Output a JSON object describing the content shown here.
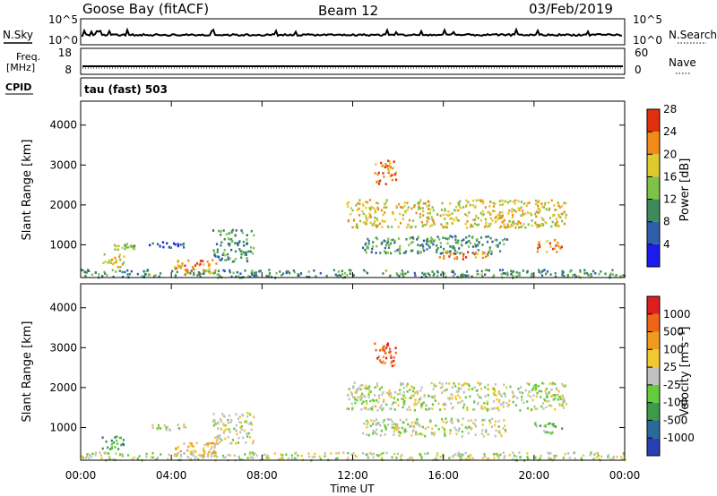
{
  "header": {
    "station": "Goose Bay (fitACF)",
    "beam": "Beam 12",
    "date": "03/Feb/2019"
  },
  "top_panels": {
    "nsky_label": "N.Sky",
    "nsky_ticks": [
      "10^5",
      "10^0"
    ],
    "nsearch_label": "N.Search",
    "nsearch_ticks": [
      "10^5",
      "10^0"
    ],
    "freq_label_1": "Freq.",
    "freq_label_2": "[MHz]",
    "freq_ticks": [
      "18",
      "8"
    ],
    "nave_label": "Nave",
    "nave_ticks": [
      "60",
      "0"
    ],
    "cpid_label": "CPID",
    "cpid_value": "tau (fast) 503"
  },
  "chart_data": [
    {
      "type": "heatmap",
      "ylabel": "Slant Range [km]",
      "xlabel": "Time UT",
      "x_ticks": [
        "00:00",
        "04:00",
        "08:00",
        "12:00",
        "16:00",
        "20:00",
        "00:00"
      ],
      "xlim_hours": [
        0,
        24
      ],
      "y_ticks": [
        1000,
        2000,
        3000,
        4000
      ],
      "ylim": [
        180,
        4600
      ],
      "colorbar": {
        "label": "Power [dB]",
        "ticks": [
          "4",
          "8",
          "12",
          "16",
          "20",
          "24",
          "28"
        ],
        "colors": [
          "#1c1cf0",
          "#2e5fa8",
          "#3d8a5a",
          "#7fc24a",
          "#e0c830",
          "#f08a18",
          "#e03010"
        ]
      },
      "regions": [
        {
          "t_start": 0.0,
          "t_end": 24.0,
          "r_start": 200,
          "r_end": 400,
          "level": 2
        },
        {
          "t_start": 0.9,
          "t_end": 1.9,
          "r_start": 450,
          "r_end": 800,
          "level": 4
        },
        {
          "t_start": 1.4,
          "t_end": 2.4,
          "r_start": 900,
          "r_end": 1050,
          "level": 3
        },
        {
          "t_start": 3.0,
          "t_end": 4.6,
          "r_start": 950,
          "r_end": 1100,
          "level": 1
        },
        {
          "t_start": 4.1,
          "t_end": 6.0,
          "r_start": 300,
          "r_end": 650,
          "level": 5
        },
        {
          "t_start": 5.8,
          "t_end": 7.6,
          "r_start": 600,
          "r_end": 1400,
          "level": 2
        },
        {
          "t_start": 11.7,
          "t_end": 21.4,
          "r_start": 1450,
          "r_end": 2150,
          "level": 4
        },
        {
          "t_start": 12.4,
          "t_end": 18.8,
          "r_start": 800,
          "r_end": 1250,
          "level": 2
        },
        {
          "t_start": 15.8,
          "t_end": 18.0,
          "r_start": 650,
          "r_end": 850,
          "level": 5
        },
        {
          "t_start": 20.0,
          "t_end": 21.2,
          "r_start": 850,
          "r_end": 1150,
          "level": 5
        },
        {
          "t_start": 12.9,
          "t_end": 13.9,
          "r_start": 2550,
          "r_end": 3150,
          "level": 5
        }
      ]
    },
    {
      "type": "heatmap",
      "ylabel": "Slant Range [km]",
      "xlabel": "Time UT",
      "x_ticks": [
        "00:00",
        "04:00",
        "08:00",
        "12:00",
        "16:00",
        "20:00",
        "00:00"
      ],
      "xlim_hours": [
        0,
        24
      ],
      "y_ticks": [
        1000,
        2000,
        3000,
        4000
      ],
      "ylim": [
        180,
        4600
      ],
      "colorbar": {
        "label": "Velocity [m s⁻¹]",
        "ticks": [
          "1000",
          "500",
          "100",
          "25",
          "-25",
          "-100",
          "-500",
          "-1000"
        ],
        "colors": [
          "#2a3fb4",
          "#2a6a9a",
          "#3c9a4a",
          "#62cc3a",
          "#c0c0c0",
          "#f0c832",
          "#f09a22",
          "#f06418",
          "#e01e1e"
        ]
      },
      "regions": [
        {
          "t_start": 0.0,
          "t_end": 24.0,
          "r_start": 200,
          "r_end": 400,
          "level": 4
        },
        {
          "t_start": 0.9,
          "t_end": 1.9,
          "r_start": 450,
          "r_end": 800,
          "level": 2
        },
        {
          "t_start": 3.0,
          "t_end": 4.6,
          "r_start": 950,
          "r_end": 1100,
          "level": 4
        },
        {
          "t_start": 4.1,
          "t_end": 6.0,
          "r_start": 300,
          "r_end": 650,
          "level": 5
        },
        {
          "t_start": 5.8,
          "t_end": 7.6,
          "r_start": 600,
          "r_end": 1400,
          "level": 4
        },
        {
          "t_start": 11.7,
          "t_end": 21.4,
          "r_start": 1450,
          "r_end": 2150,
          "level": 4
        },
        {
          "t_start": 12.4,
          "t_end": 18.8,
          "r_start": 800,
          "r_end": 1250,
          "level": 4
        },
        {
          "t_start": 20.0,
          "t_end": 21.2,
          "r_start": 850,
          "r_end": 1150,
          "level": 3
        },
        {
          "t_start": 12.9,
          "t_end": 13.9,
          "r_start": 2550,
          "r_end": 3150,
          "level": 7
        }
      ]
    }
  ]
}
